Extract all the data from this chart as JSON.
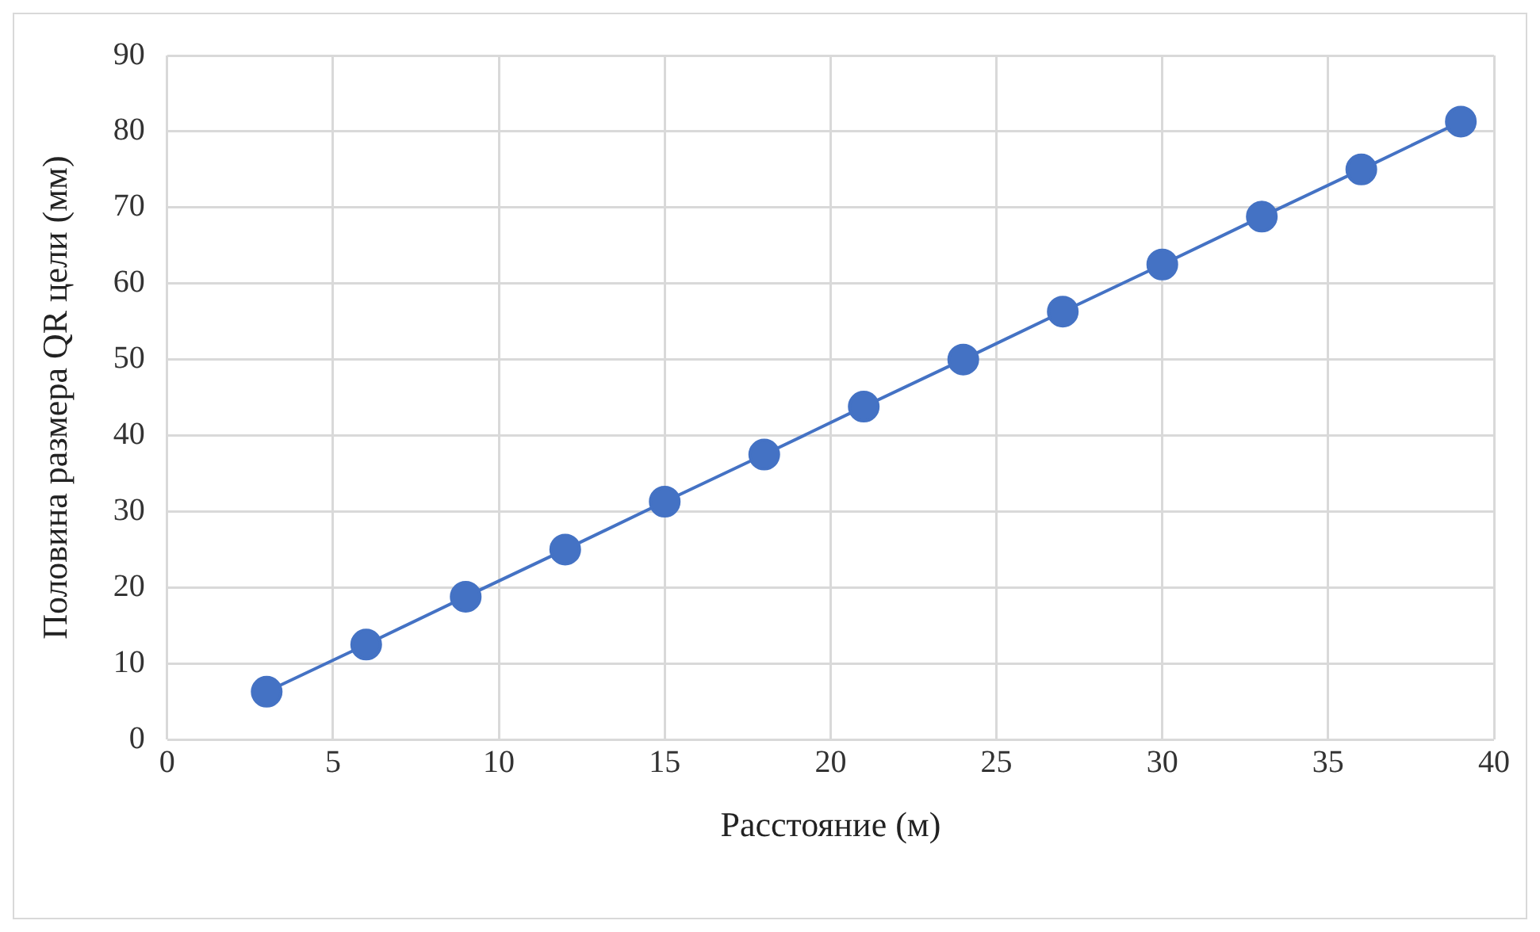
{
  "chart_data": {
    "type": "line",
    "xlabel": "Расстояние (м)",
    "ylabel": "Половина размера QR цели (мм)",
    "x": [
      3,
      6,
      9,
      12,
      15,
      18,
      21,
      24,
      27,
      30,
      33,
      36,
      39
    ],
    "series": [
      {
        "color": "#4472c4",
        "values": [
          6.3,
          12.5,
          18.8,
          25,
          31.3,
          37.5,
          43.8,
          50,
          56.3,
          62.5,
          68.8,
          75,
          81.3
        ]
      }
    ],
    "xlim": [
      0,
      40
    ],
    "xticks": [
      0,
      5,
      10,
      15,
      20,
      25,
      30,
      35,
      40
    ],
    "ylim": [
      0,
      90
    ],
    "yticks": [
      0,
      10,
      20,
      30,
      40,
      50,
      60,
      70,
      80,
      90
    ],
    "grid": true,
    "marker": "circle",
    "line_style": "solid",
    "legend": false
  }
}
